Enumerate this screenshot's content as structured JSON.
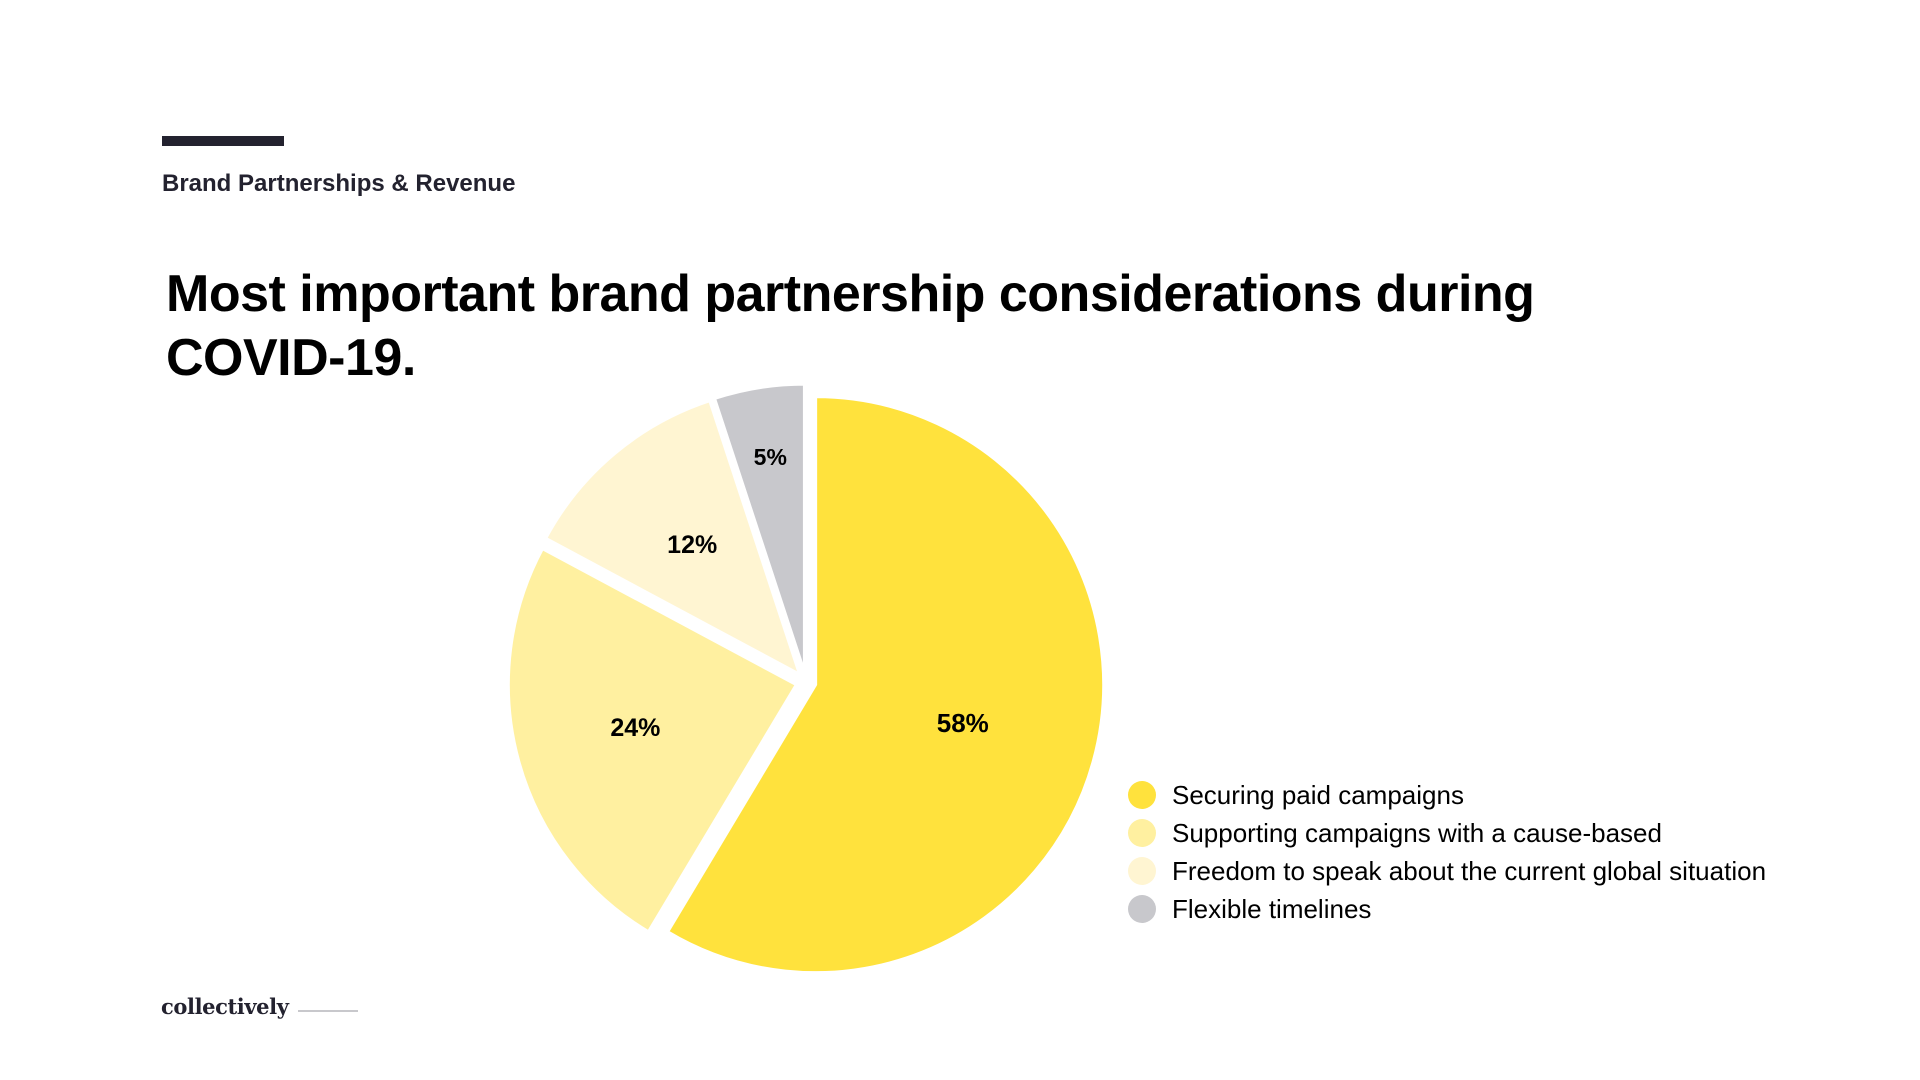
{
  "section": {
    "label": "Brand Partnerships & Revenue"
  },
  "chart_data": {
    "type": "pie",
    "title": "Most important brand partnership considerations during COVID-19.",
    "categories": [
      "Securing paid campaigns",
      "Supporting campaigns with a cause-based",
      "Freedom to speak about the current global situation",
      "Flexible timelines"
    ],
    "values": [
      58,
      24,
      12,
      5
    ],
    "value_labels": [
      "58%",
      "24%",
      "12%",
      "5%"
    ],
    "colors": [
      "#ffe23d",
      "#fff0a0",
      "#fff5d2",
      "#c8c8cc"
    ],
    "start": "12 o'clock",
    "direction": "clockwise",
    "legend_position": "bottom-right"
  },
  "footer": {
    "logo_text": "collectively"
  }
}
